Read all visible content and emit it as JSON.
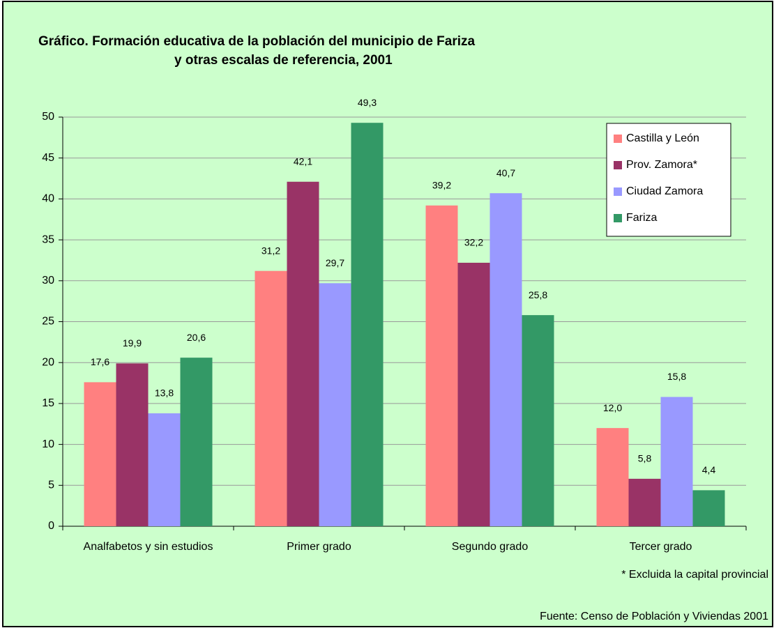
{
  "chart_data": {
    "type": "bar",
    "title": [
      "Gráfico. Formación educativa de la población del municipio de Fariza",
      "y otras escalas de referencia, 2001"
    ],
    "categories": [
      "Analfabetos y sin estudios",
      "Primer grado",
      "Segundo grado",
      "Tercer grado"
    ],
    "series": [
      {
        "name": "Castilla y León",
        "color": "#ff8080",
        "values": [
          17.6,
          31.2,
          39.2,
          12.0
        ],
        "value_labels": [
          "17,6",
          "31,2",
          "39,2",
          "12,0"
        ]
      },
      {
        "name": "Prov. Zamora*",
        "color": "#993366",
        "values": [
          19.9,
          42.1,
          32.2,
          5.8
        ],
        "value_labels": [
          "19,9",
          "42,1",
          "32,2",
          "5,8"
        ]
      },
      {
        "name": "Ciudad Zamora",
        "color": "#9999ff",
        "values": [
          13.8,
          29.7,
          40.7,
          15.8
        ],
        "value_labels": [
          "13,8",
          "29,7",
          "40,7",
          "15,8"
        ]
      },
      {
        "name": "Fariza",
        "color": "#339966",
        "values": [
          20.6,
          49.3,
          25.8,
          4.4
        ],
        "value_labels": [
          "20,6",
          "49,3",
          "25,8",
          "4,4"
        ]
      }
    ],
    "ylim": [
      0,
      50
    ],
    "yticks": [
      0,
      5,
      10,
      15,
      20,
      25,
      30,
      35,
      40,
      45,
      50
    ],
    "grid": true,
    "legend": "top-right",
    "annotations": [
      "* Excluida la capital provincial",
      "Fuente: Censo de Población y Viviendas 2001"
    ]
  }
}
